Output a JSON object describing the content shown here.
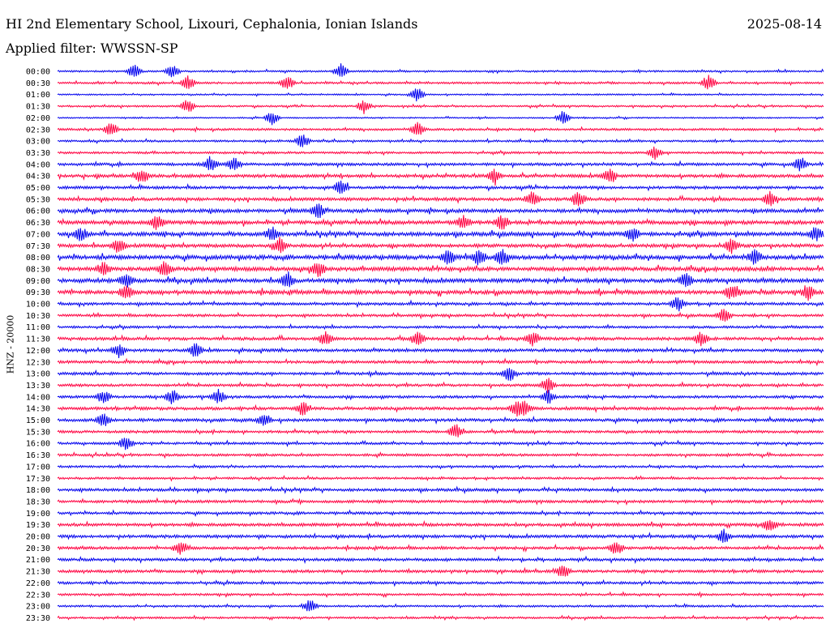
{
  "header": {
    "station_title": "HI 2nd Elementary School, Lixouri, Cephalonia, Ionian Islands",
    "date": "2025-08-14",
    "filter_text": "Applied filter: WWSSN-SP"
  },
  "chart_data": {
    "type": "line",
    "subtype": "helicorder",
    "ylabel": "HNZ - 20000",
    "colors": [
      "#0000ee",
      "#ff0040"
    ],
    "grid": false,
    "legend": "none",
    "rows": [
      {
        "time": "00:00",
        "color": "#0000ee",
        "amplitude": 0.18,
        "events": [
          0.1,
          0.15,
          0.37
        ]
      },
      {
        "time": "00:30",
        "color": "#ff0040",
        "amplitude": 0.2,
        "events": [
          0.17,
          0.3,
          0.85
        ]
      },
      {
        "time": "01:00",
        "color": "#0000ee",
        "amplitude": 0.15,
        "events": [
          0.47
        ]
      },
      {
        "time": "01:30",
        "color": "#ff0040",
        "amplitude": 0.18,
        "events": [
          0.17,
          0.4
        ]
      },
      {
        "time": "02:00",
        "color": "#0000ee",
        "amplitude": 0.14,
        "events": [
          0.28,
          0.66
        ]
      },
      {
        "time": "02:30",
        "color": "#ff0040",
        "amplitude": 0.22,
        "events": [
          0.07,
          0.47
        ]
      },
      {
        "time": "03:00",
        "color": "#0000ee",
        "amplitude": 0.2,
        "events": [
          0.32
        ]
      },
      {
        "time": "03:30",
        "color": "#ff0040",
        "amplitude": 0.22,
        "events": [
          0.78
        ]
      },
      {
        "time": "04:00",
        "color": "#0000ee",
        "amplitude": 0.28,
        "events": [
          0.2,
          0.23,
          0.97
        ]
      },
      {
        "time": "04:30",
        "color": "#ff0040",
        "amplitude": 0.32,
        "events": [
          0.11,
          0.57,
          0.72
        ]
      },
      {
        "time": "05:00",
        "color": "#0000ee",
        "amplitude": 0.28,
        "events": [
          0.37
        ]
      },
      {
        "time": "05:30",
        "color": "#ff0040",
        "amplitude": 0.32,
        "events": [
          0.62,
          0.68,
          0.93
        ]
      },
      {
        "time": "06:00",
        "color": "#0000ee",
        "amplitude": 0.36,
        "events": [
          0.34
        ]
      },
      {
        "time": "06:30",
        "color": "#ff0040",
        "amplitude": 0.38,
        "events": [
          0.13,
          0.53,
          0.58
        ]
      },
      {
        "time": "07:00",
        "color": "#0000ee",
        "amplitude": 0.4,
        "events": [
          0.03,
          0.28,
          0.75,
          0.99
        ]
      },
      {
        "time": "07:30",
        "color": "#ff0040",
        "amplitude": 0.34,
        "events": [
          0.08,
          0.29,
          0.88
        ]
      },
      {
        "time": "08:00",
        "color": "#0000ee",
        "amplitude": 0.42,
        "events": [
          0.51,
          0.55,
          0.58,
          0.91
        ]
      },
      {
        "time": "08:30",
        "color": "#ff0040",
        "amplitude": 0.4,
        "events": [
          0.06,
          0.14,
          0.34
        ]
      },
      {
        "time": "09:00",
        "color": "#0000ee",
        "amplitude": 0.4,
        "events": [
          0.09,
          0.3,
          0.82
        ]
      },
      {
        "time": "09:30",
        "color": "#ff0040",
        "amplitude": 0.4,
        "events": [
          0.09,
          0.88,
          0.98
        ]
      },
      {
        "time": "10:00",
        "color": "#0000ee",
        "amplitude": 0.28,
        "events": [
          0.81
        ]
      },
      {
        "time": "10:30",
        "color": "#ff0040",
        "amplitude": 0.26,
        "events": [
          0.87
        ]
      },
      {
        "time": "11:00",
        "color": "#0000ee",
        "amplitude": 0.24,
        "events": []
      },
      {
        "time": "11:30",
        "color": "#ff0040",
        "amplitude": 0.3,
        "events": [
          0.35,
          0.47,
          0.62,
          0.84
        ]
      },
      {
        "time": "12:00",
        "color": "#0000ee",
        "amplitude": 0.3,
        "events": [
          0.08,
          0.18
        ]
      },
      {
        "time": "12:30",
        "color": "#ff0040",
        "amplitude": 0.28,
        "events": []
      },
      {
        "time": "13:00",
        "color": "#0000ee",
        "amplitude": 0.28,
        "events": [
          0.59
        ]
      },
      {
        "time": "13:30",
        "color": "#ff0040",
        "amplitude": 0.26,
        "events": [
          0.64
        ]
      },
      {
        "time": "14:00",
        "color": "#0000ee",
        "amplitude": 0.26,
        "events": [
          0.06,
          0.15,
          0.21,
          0.64
        ]
      },
      {
        "time": "14:30",
        "color": "#ff0040",
        "amplitude": 0.3,
        "events": [
          0.32,
          0.6,
          0.61
        ]
      },
      {
        "time": "15:00",
        "color": "#0000ee",
        "amplitude": 0.3,
        "events": [
          0.06,
          0.27
        ]
      },
      {
        "time": "15:30",
        "color": "#ff0040",
        "amplitude": 0.26,
        "events": [
          0.52
        ]
      },
      {
        "time": "16:00",
        "color": "#0000ee",
        "amplitude": 0.24,
        "events": [
          0.09
        ]
      },
      {
        "time": "16:30",
        "color": "#ff0040",
        "amplitude": 0.24,
        "events": []
      },
      {
        "time": "17:00",
        "color": "#0000ee",
        "amplitude": 0.22,
        "events": []
      },
      {
        "time": "17:30",
        "color": "#ff0040",
        "amplitude": 0.22,
        "events": []
      },
      {
        "time": "18:00",
        "color": "#0000ee",
        "amplitude": 0.28,
        "events": []
      },
      {
        "time": "18:30",
        "color": "#ff0040",
        "amplitude": 0.28,
        "events": []
      },
      {
        "time": "19:00",
        "color": "#0000ee",
        "amplitude": 0.26,
        "events": []
      },
      {
        "time": "19:30",
        "color": "#ff0040",
        "amplitude": 0.3,
        "events": [
          0.93
        ]
      },
      {
        "time": "20:00",
        "color": "#0000ee",
        "amplitude": 0.3,
        "events": [
          0.87
        ]
      },
      {
        "time": "20:30",
        "color": "#ff0040",
        "amplitude": 0.28,
        "events": [
          0.16,
          0.73
        ]
      },
      {
        "time": "21:00",
        "color": "#0000ee",
        "amplitude": 0.28,
        "events": []
      },
      {
        "time": "21:30",
        "color": "#ff0040",
        "amplitude": 0.28,
        "events": [
          0.66
        ]
      },
      {
        "time": "22:00",
        "color": "#0000ee",
        "amplitude": 0.26,
        "events": []
      },
      {
        "time": "22:30",
        "color": "#ff0040",
        "amplitude": 0.22,
        "events": []
      },
      {
        "time": "23:00",
        "color": "#0000ee",
        "amplitude": 0.2,
        "events": [
          0.33
        ]
      },
      {
        "time": "23:30",
        "color": "#ff0040",
        "amplitude": 0.2,
        "events": []
      }
    ]
  }
}
